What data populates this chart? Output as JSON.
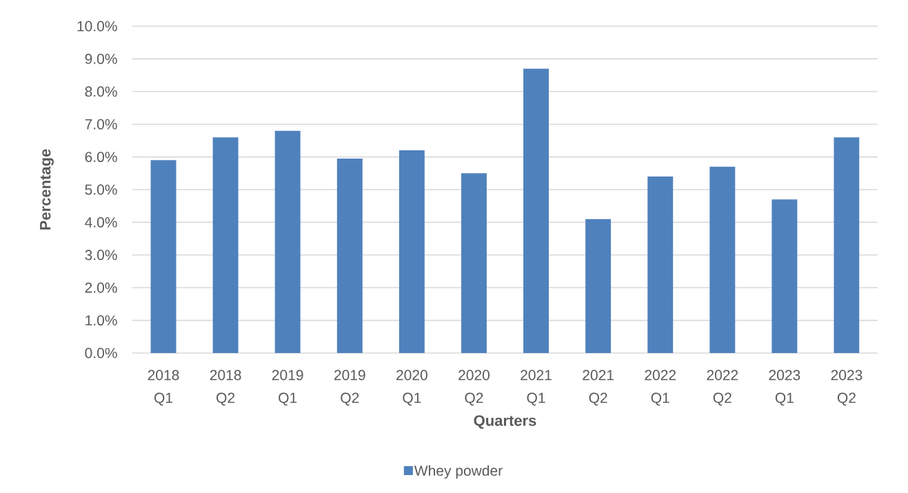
{
  "chart_data": {
    "type": "bar",
    "xlabel": "Quarters",
    "ylabel": "Percentage",
    "categories": [
      "2018 Q1",
      "2018 Q2",
      "2019 Q1",
      "2019 Q2",
      "2020 Q1",
      "2020 Q2",
      "2021 Q1",
      "2021 Q2",
      "2022 Q1",
      "2022 Q2",
      "2023 Q1",
      "2023 Q2"
    ],
    "series": [
      {
        "name": "Whey powder",
        "color": "#4f81bd",
        "values": [
          5.9,
          6.6,
          6.8,
          5.95,
          6.2,
          5.5,
          8.7,
          4.1,
          5.4,
          5.7,
          4.7,
          6.6
        ]
      }
    ],
    "ylim": [
      0,
      10
    ],
    "yticks": [
      {
        "value": 0,
        "label": "0.0%"
      },
      {
        "value": 1,
        "label": "1.0%"
      },
      {
        "value": 2,
        "label": "2.0%"
      },
      {
        "value": 3,
        "label": "3.0%"
      },
      {
        "value": 4,
        "label": "4.0%"
      },
      {
        "value": 5,
        "label": "5.0%"
      },
      {
        "value": 6,
        "label": "6.0%"
      },
      {
        "value": 7,
        "label": "7.0%"
      },
      {
        "value": 8,
        "label": "8.0%"
      },
      {
        "value": 9,
        "label": "9.0%"
      },
      {
        "value": 10,
        "label": "10.0%"
      }
    ],
    "grid": "y",
    "legend": "bottom"
  }
}
